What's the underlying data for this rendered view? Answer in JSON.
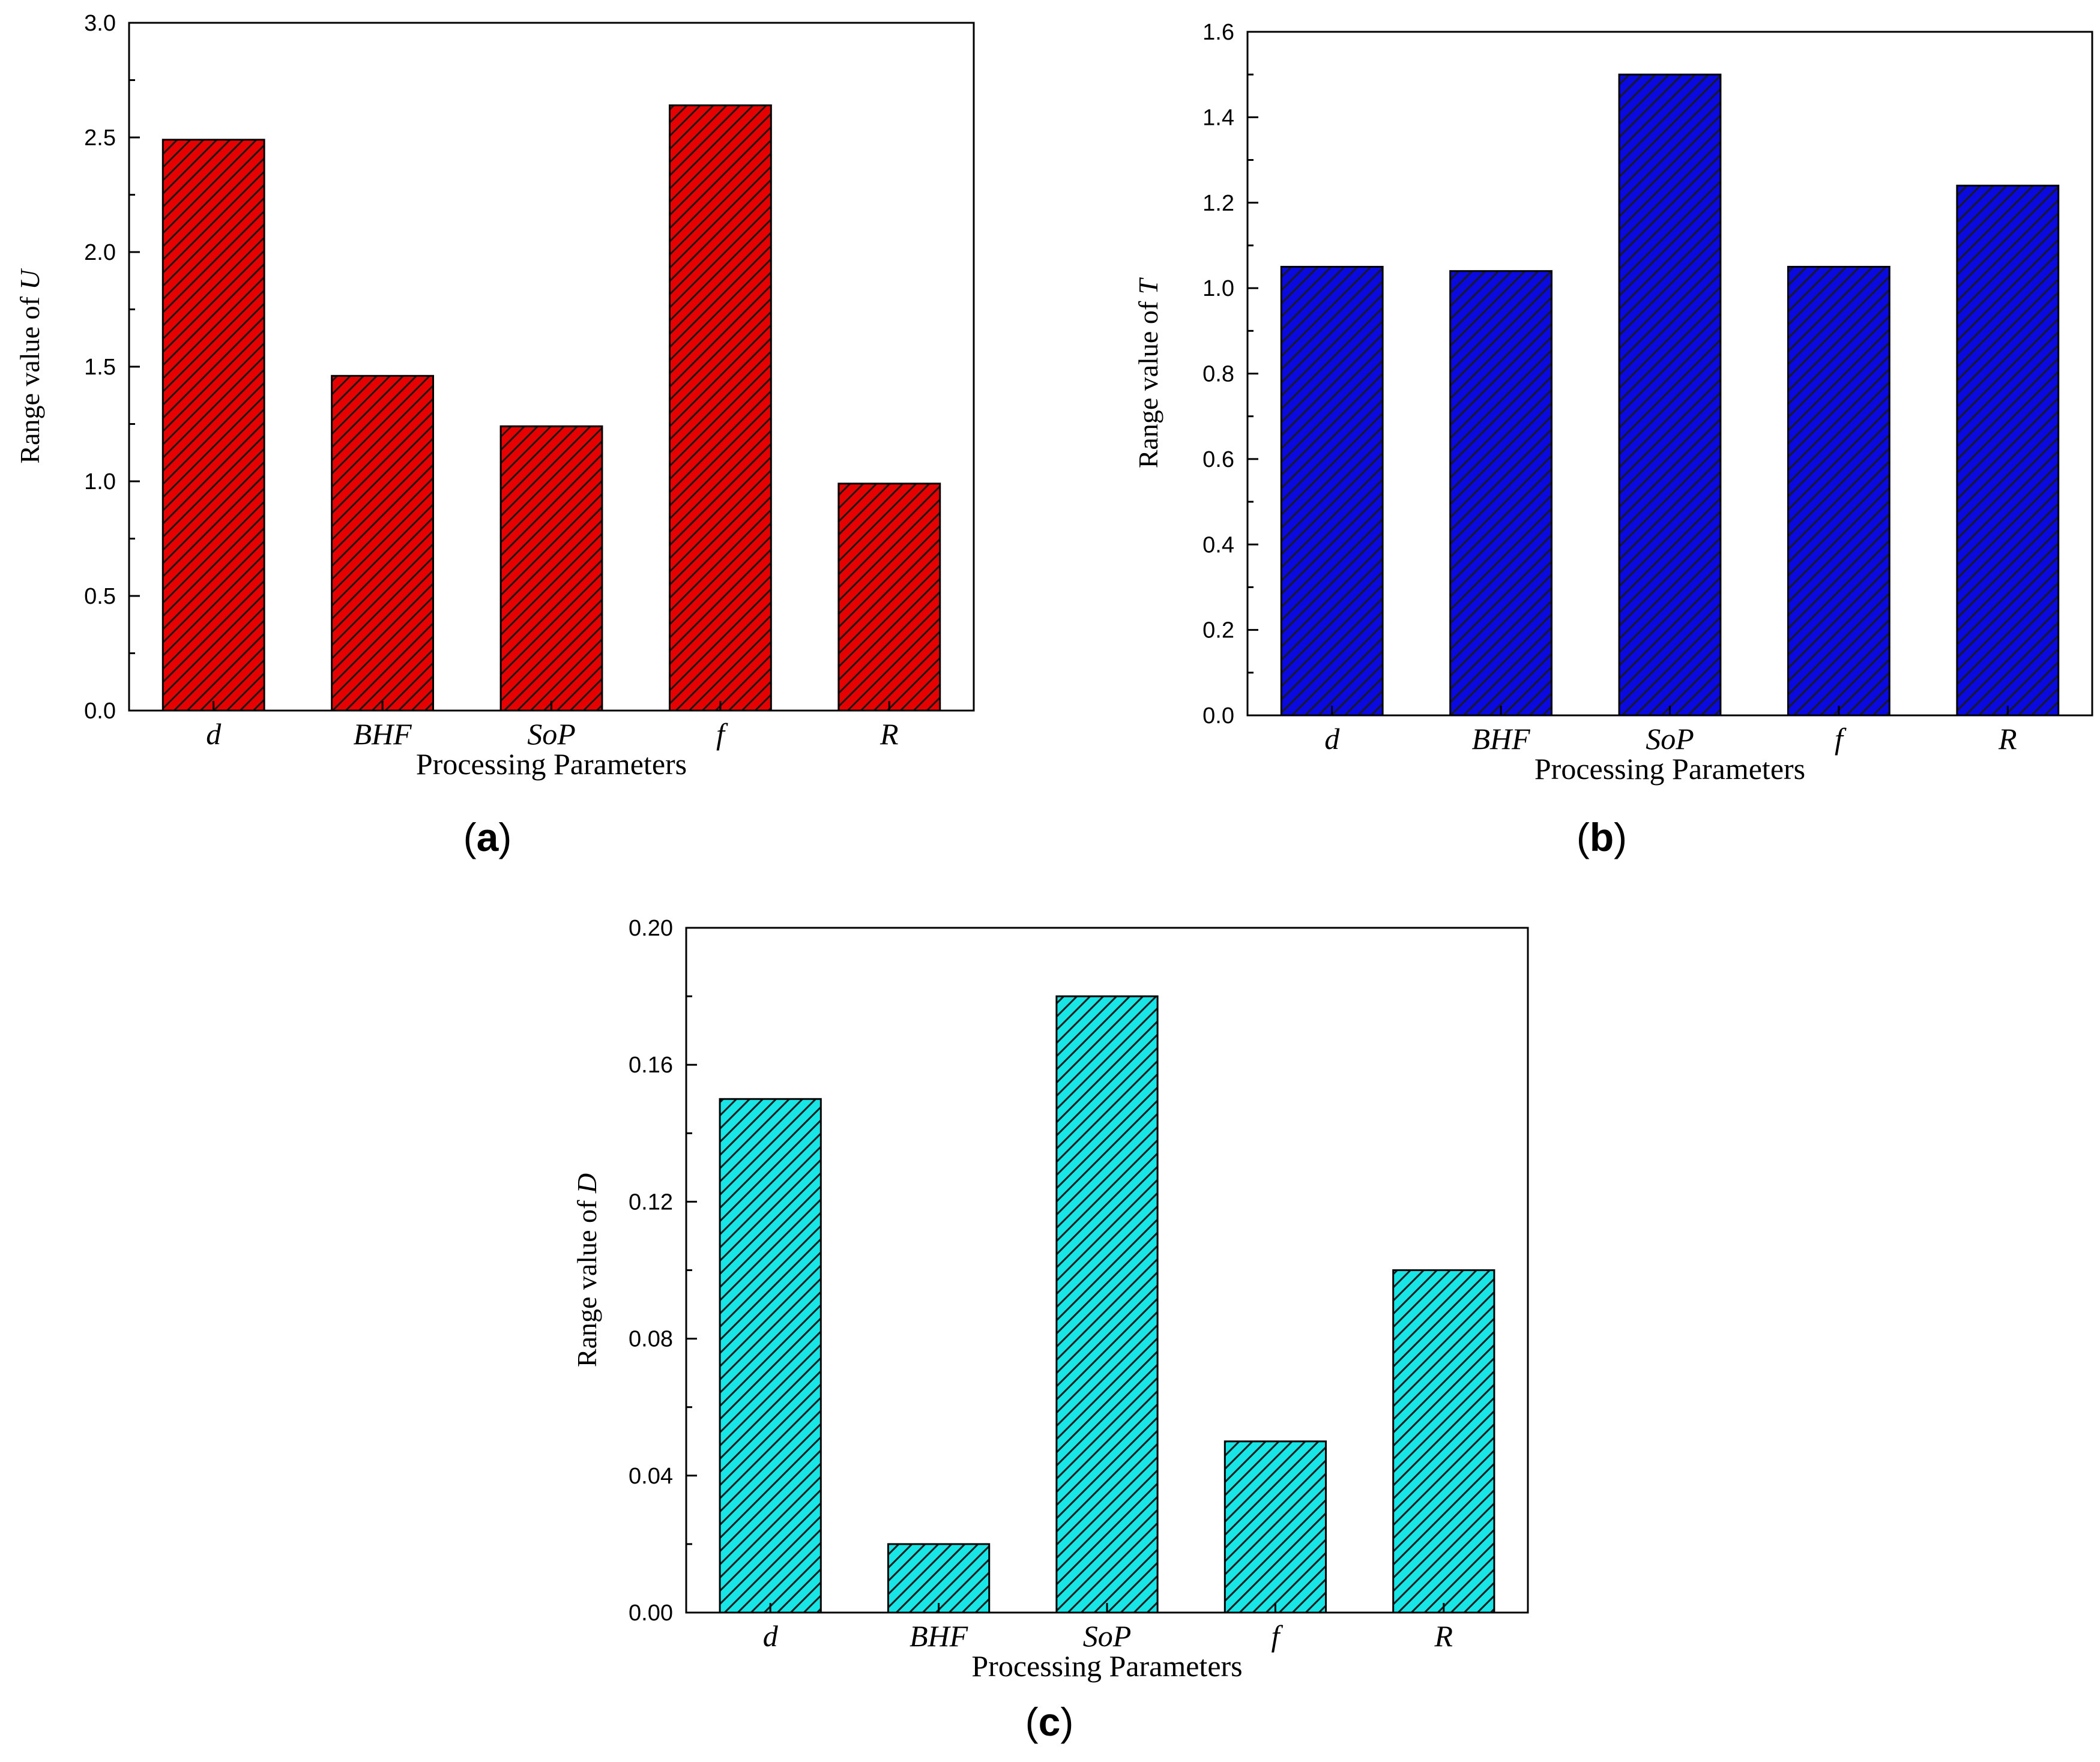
{
  "figure": {
    "colors": {
      "axis": "#000000",
      "hatch": "#1a1a1a"
    }
  },
  "chart_data": [
    {
      "type": "bar",
      "panel": "a",
      "caption": {
        "open": "(",
        "letter": "a",
        "close": ")"
      },
      "categories": [
        "d",
        "BHF",
        "SoP",
        "f",
        "R"
      ],
      "values": [
        2.49,
        1.46,
        1.24,
        2.64,
        0.99
      ],
      "ylim": [
        0,
        3.0
      ],
      "yticks": [
        "0.0",
        "0.5",
        "1.0",
        "1.5",
        "2.0",
        "2.5",
        "3.0"
      ],
      "xlabel": "Processing Parameters",
      "ylabel_prefix": "Range value of ",
      "ylabel_var": "U",
      "color": "#e60000",
      "hatch": "diagonal",
      "grid": false
    },
    {
      "type": "bar",
      "panel": "b",
      "caption": {
        "open": "(",
        "letter": "b",
        "close": ")"
      },
      "categories": [
        "d",
        "BHF",
        "SoP",
        "f",
        "R"
      ],
      "values": [
        1.05,
        1.04,
        1.5,
        1.05,
        1.24
      ],
      "ylim": [
        0,
        1.6
      ],
      "yticks": [
        "0.0",
        "0.2",
        "0.4",
        "0.6",
        "0.8",
        "1.0",
        "1.2",
        "1.4",
        "1.6"
      ],
      "xlabel": "Processing Parameters",
      "ylabel_prefix": "Range value of ",
      "ylabel_var": "T",
      "color": "#0a0ae0",
      "hatch": "diagonal",
      "grid": false
    },
    {
      "type": "bar",
      "panel": "c",
      "caption": {
        "open": "(",
        "letter": "c",
        "close": ")"
      },
      "categories": [
        "d",
        "BHF",
        "SoP",
        "f",
        "R"
      ],
      "values": [
        0.15,
        0.02,
        0.18,
        0.05,
        0.1
      ],
      "ylim": [
        0,
        0.2
      ],
      "yticks": [
        "0.00",
        "0.04",
        "0.08",
        "0.12",
        "0.16",
        "0.20"
      ],
      "xlabel": "Processing Parameters",
      "ylabel_prefix": "Range value of ",
      "ylabel_var": "D",
      "color": "#18e6e6",
      "hatch": "diagonal",
      "grid": false
    }
  ]
}
